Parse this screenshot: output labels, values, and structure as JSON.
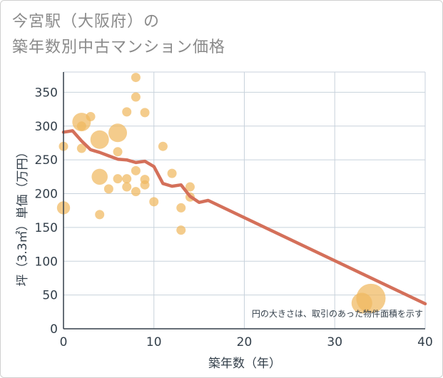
{
  "title_line1": "今宮駅（大阪府）の",
  "title_line2": "築年数別中古マンション価格",
  "chart_data": {
    "type": "scatter",
    "xlabel": "築年数（年）",
    "ylabel": "坪（3.3㎡）単価（万円）",
    "xlim": [
      0,
      40
    ],
    "ylim": [
      0,
      380
    ],
    "xticks": [
      0,
      10,
      20,
      30,
      40
    ],
    "yticks": [
      0,
      50,
      100,
      150,
      200,
      250,
      300,
      350
    ],
    "grid": true,
    "note": "円の大きさは、取引のあった物件面積を示す",
    "colors": {
      "point": "#f0b860",
      "trend": "#d4705a",
      "grid": "#c8d2dc",
      "axis": "#333f4a"
    },
    "points": [
      {
        "x": 0,
        "y": 270,
        "size": 1
      },
      {
        "x": 0,
        "y": 179,
        "size": 2
      },
      {
        "x": 2,
        "y": 306,
        "size": 4
      },
      {
        "x": 2,
        "y": 300,
        "size": 1
      },
      {
        "x": 2,
        "y": 267,
        "size": 1
      },
      {
        "x": 3,
        "y": 314,
        "size": 1
      },
      {
        "x": 4,
        "y": 280,
        "size": 4
      },
      {
        "x": 4,
        "y": 225,
        "size": 3
      },
      {
        "x": 4,
        "y": 169,
        "size": 1
      },
      {
        "x": 5,
        "y": 207,
        "size": 1
      },
      {
        "x": 6,
        "y": 290,
        "size": 4
      },
      {
        "x": 6,
        "y": 262,
        "size": 1
      },
      {
        "x": 6,
        "y": 222,
        "size": 1
      },
      {
        "x": 7,
        "y": 321,
        "size": 1
      },
      {
        "x": 7,
        "y": 222,
        "size": 1
      },
      {
        "x": 7,
        "y": 210,
        "size": 1
      },
      {
        "x": 8,
        "y": 372,
        "size": 1
      },
      {
        "x": 8,
        "y": 343,
        "size": 1
      },
      {
        "x": 8,
        "y": 234,
        "size": 1
      },
      {
        "x": 8,
        "y": 203,
        "size": 1
      },
      {
        "x": 9,
        "y": 320,
        "size": 1
      },
      {
        "x": 9,
        "y": 221,
        "size": 1
      },
      {
        "x": 9,
        "y": 213,
        "size": 1
      },
      {
        "x": 10,
        "y": 188,
        "size": 1
      },
      {
        "x": 11,
        "y": 270,
        "size": 1
      },
      {
        "x": 12,
        "y": 230,
        "size": 1
      },
      {
        "x": 13,
        "y": 179,
        "size": 1
      },
      {
        "x": 13,
        "y": 146,
        "size": 1
      },
      {
        "x": 14,
        "y": 210,
        "size": 1
      },
      {
        "x": 14,
        "y": 195,
        "size": 1
      },
      {
        "x": 34,
        "y": 45,
        "size": 10
      },
      {
        "x": 33,
        "y": 38,
        "size": 5
      }
    ],
    "trend": {
      "x": [
        0,
        1,
        2,
        3,
        4,
        5,
        6,
        7,
        8,
        9,
        10,
        11,
        12,
        13,
        14,
        15,
        16,
        40
      ],
      "y": [
        291,
        293,
        278,
        265,
        261,
        256,
        251,
        250,
        246,
        248,
        240,
        215,
        211,
        213,
        196,
        187,
        190,
        37
      ]
    }
  }
}
